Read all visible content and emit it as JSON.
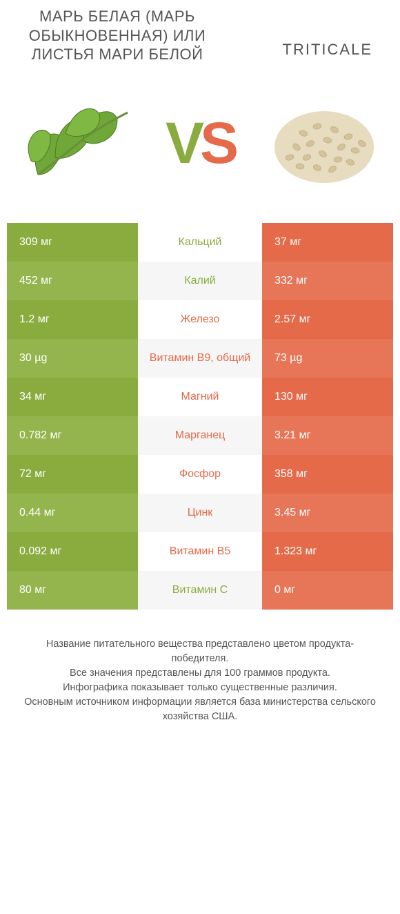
{
  "colors": {
    "green": "#8aac3f",
    "green_alt": "#94b54d",
    "orange": "#e46a4a",
    "orange_alt": "#e77659",
    "bg": "#ffffff",
    "bg_alt": "#f6f6f6",
    "text": "#555555"
  },
  "header": {
    "left_title": "МАРЬ БЕЛАЯ (МАРЬ ОБЫКНОВЕННАЯ) ИЛИ ЛИСТЬЯ МАРИ БЕЛОЙ",
    "right_title": "TRITICALE",
    "vs_v": "V",
    "vs_s": "S"
  },
  "table": {
    "rows": [
      {
        "left": "309 мг",
        "label": "Кальций",
        "right": "37 мг",
        "winner": "left"
      },
      {
        "left": "452 мг",
        "label": "Калий",
        "right": "332 мг",
        "winner": "left"
      },
      {
        "left": "1.2 мг",
        "label": "Железо",
        "right": "2.57 мг",
        "winner": "right"
      },
      {
        "left": "30 µg",
        "label": "Витамин B9, общий",
        "right": "73 µg",
        "winner": "right"
      },
      {
        "left": "34 мг",
        "label": "Магний",
        "right": "130 мг",
        "winner": "right"
      },
      {
        "left": "0.782 мг",
        "label": "Марганец",
        "right": "3.21 мг",
        "winner": "right"
      },
      {
        "left": "72 мг",
        "label": "Фосфор",
        "right": "358 мг",
        "winner": "right"
      },
      {
        "left": "0.44 мг",
        "label": "Цинк",
        "right": "3.45 мг",
        "winner": "right"
      },
      {
        "left": "0.092 мг",
        "label": "Витамин B5",
        "right": "1.323 мг",
        "winner": "right"
      },
      {
        "left": "80 мг",
        "label": "Витамин C",
        "right": "0 мг",
        "winner": "left"
      }
    ]
  },
  "footer": {
    "line1": "Название питательного вещества представлено цветом продукта-победителя.",
    "line2": "Все значения представлены для 100 граммов продукта.",
    "line3": "Инфографика показывает только существенные различия.",
    "line4": "Основным источником информации является база министерства сельского хозяйства США."
  }
}
